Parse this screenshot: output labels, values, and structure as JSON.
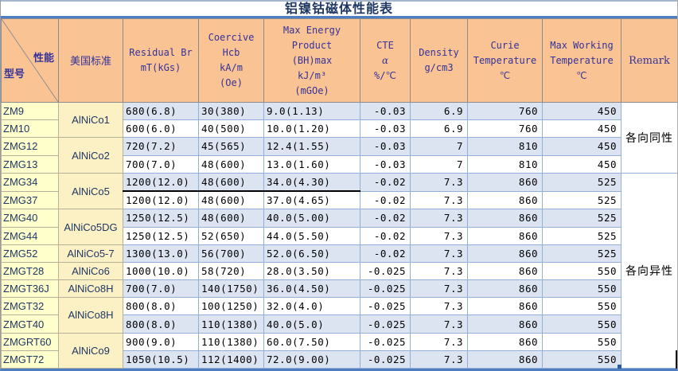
{
  "title": "铝镍钴磁体性能表",
  "header": {
    "diagonal": {
      "top_right": "性能",
      "bottom_left": "型号"
    },
    "columns": [
      {
        "id": "us-standard",
        "cjk": true,
        "lines": [
          "美国标准"
        ]
      },
      {
        "id": "residual-br",
        "lines": [
          "Residual Br",
          "mT(kGs)"
        ]
      },
      {
        "id": "coercive",
        "lines": [
          "Coercive",
          "Hcb",
          "kA/m",
          "(Oe)"
        ]
      },
      {
        "id": "max-energy",
        "lines": [
          "Max Energy",
          "Product",
          "(BH)max",
          "kJ/m³",
          "(mGOe)"
        ]
      },
      {
        "id": "cte",
        "lines": [
          "CTE",
          "α",
          "%/℃"
        ]
      },
      {
        "id": "density",
        "lines": [
          "Density",
          "g/cm3"
        ]
      },
      {
        "id": "curie",
        "lines": [
          "Curie",
          "Temperature",
          "℃"
        ]
      },
      {
        "id": "max-working",
        "lines": [
          "Max Working",
          "Temperature",
          "℃"
        ]
      },
      {
        "id": "remark",
        "serif": true,
        "lines": [
          "Remark"
        ]
      }
    ]
  },
  "rows": [
    {
      "model": "ZM9",
      "standard": {
        "label": "AlNiCo1",
        "rowspan": 2
      },
      "residual_br": "680(6.8)",
      "coercive": "30(380)",
      "max_energy": "9.0(1.13)",
      "cte": "-0.03",
      "density": "6.9",
      "curie": "760",
      "max_working": "450",
      "remark": {
        "label": "各向同性",
        "rowspan": 4
      }
    },
    {
      "model": "ZM10",
      "residual_br": "600(6.0)",
      "coercive": "40(500)",
      "max_energy": "10.0(1.20)",
      "cte": "-0.03",
      "density": "6.9",
      "curie": "760",
      "max_working": "450"
    },
    {
      "model": "ZMG12",
      "standard": {
        "label": "AlNiCo2",
        "rowspan": 2
      },
      "residual_br": "720(7.2)",
      "coercive": "45(565)",
      "max_energy": "12.4(1.55)",
      "cte": "-0.03",
      "density": "7",
      "curie": "810",
      "max_working": "450"
    },
    {
      "model": "ZMG13",
      "residual_br": "700(7.0)",
      "coercive": "48(600)",
      "max_energy": "13.0(1.60)",
      "cte": "-0.03",
      "density": "7",
      "curie": "810",
      "max_working": "450"
    },
    {
      "model": "ZMG34",
      "standard": {
        "label": "AlNiCo5",
        "rowspan": 2
      },
      "residual_br": "1200(12.0)",
      "coercive": "48(600)",
      "max_energy": "34.0(4.30)",
      "cte": "-0.02",
      "density": "7.3",
      "curie": "860",
      "max_working": "525",
      "remark": {
        "label": "各向异性",
        "rowspan": 11
      },
      "underline": true
    },
    {
      "model": "ZMG37",
      "residual_br": "1200(12.0)",
      "coercive": "48(600)",
      "max_energy": "37.0(4.65)",
      "cte": "-0.02",
      "density": "7.3",
      "curie": "860",
      "max_working": "525"
    },
    {
      "model": "ZMG40",
      "standard": {
        "label": "AlNiCo5DG",
        "rowspan": 2
      },
      "residual_br": "1250(12.5)",
      "coercive": "48(600)",
      "max_energy": "40.0(5.00)",
      "cte": "-0.02",
      "density": "7.3",
      "curie": "860",
      "max_working": "525"
    },
    {
      "model": "ZMG44",
      "residual_br": "1250(12.5)",
      "coercive": "52(650)",
      "max_energy": "44.0(5.50)",
      "cte": "-0.02",
      "density": "7.3",
      "curie": "860",
      "max_working": "525"
    },
    {
      "model": "ZMG52",
      "standard": {
        "label": "AlNiCo5-7",
        "rowspan": 1
      },
      "residual_br": "1300(13.0)",
      "coercive": "56(700)",
      "max_energy": "52.0(6.50)",
      "cte": "-0.02",
      "density": "7.3",
      "curie": "860",
      "max_working": "525"
    },
    {
      "model": "ZMGT28",
      "standard": {
        "label": "AlNiCo6",
        "rowspan": 1
      },
      "residual_br": "1000(10.0)",
      "coercive": "58(720)",
      "max_energy": "28.0(3.50)",
      "cte": "-0.025",
      "density": "7.3",
      "curie": "860",
      "max_working": "550"
    },
    {
      "model": "ZMGT36J",
      "standard": {
        "label": "AlNiCo8H",
        "rowspan": 1
      },
      "residual_br": "700(7.0)",
      "coercive": "140(1750)",
      "max_energy": "36.0(4.50)",
      "cte": "-0.025",
      "density": "7.3",
      "curie": "860",
      "max_working": "550"
    },
    {
      "model": "ZMGT32",
      "standard": {
        "label": "AlNiCo8H",
        "rowspan": 2
      },
      "residual_br": "800(8.0)",
      "coercive": "100(1250)",
      "max_energy": "32.0(4.0)",
      "cte": "-0.025",
      "density": "7.3",
      "curie": "860",
      "max_working": "550"
    },
    {
      "model": "ZMGT40",
      "residual_br": "800(8.0)",
      "coercive": "110(1380)",
      "max_energy": "40.0(5.0)",
      "cte": "-0.025",
      "density": "7.3",
      "curie": "860",
      "max_working": "550"
    },
    {
      "model": "ZMGRT60",
      "standard": {
        "label": "AlNiCo9",
        "rowspan": 2
      },
      "residual_br": "900(9.0)",
      "coercive": "110(1380)",
      "max_energy": "60.0(7.50)",
      "cte": "-0.025",
      "density": "7.3",
      "curie": "860",
      "max_working": "550"
    },
    {
      "model": "ZMGT72",
      "residual_br": "1050(10.5)",
      "coercive": "112(1400)",
      "max_energy": "72.0(9.00)",
      "cte": "-0.025",
      "density": "7.3",
      "curie": "860",
      "max_working": "550"
    }
  ],
  "colors": {
    "header_bg": "#FAC394",
    "model_col_bg": "#FFFFCC",
    "standard_col_bg": "#FCF0C5",
    "row_shade_blue": "#DCE4F2",
    "grid_blue": "#92AFD7",
    "title_text": "#1F3864",
    "header_text": "#333399",
    "accent_rule": "#4E7EC1"
  }
}
